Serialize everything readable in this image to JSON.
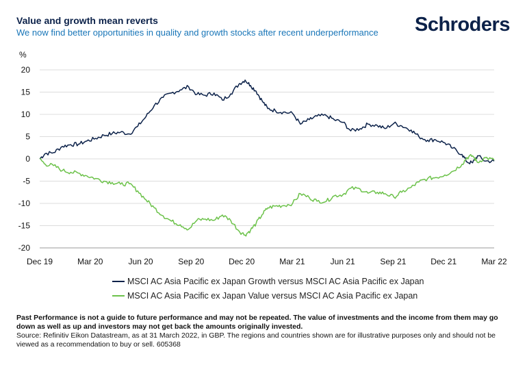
{
  "header": {
    "title": "Value and growth mean reverts",
    "subtitle": "We now find better opportunities in quality and growth stocks after recent underperformance",
    "logo": "Schroders"
  },
  "chart_data": {
    "type": "line",
    "ylabel": "%",
    "ylim": [
      -20,
      20
    ],
    "yticks": [
      20,
      15,
      10,
      5,
      0,
      -5,
      -10,
      -15,
      -20
    ],
    "x_range": [
      "2019-12-31",
      "2022-03-31"
    ],
    "xticks": [
      "Dec 19",
      "Mar 20",
      "Jun 20",
      "Sep 20",
      "Dec 20",
      "Mar 21",
      "Jun 21",
      "Sep 21",
      "Dec 21",
      "Mar 22"
    ],
    "series": [
      {
        "name": "MSCI AC Asia Pacific ex Japan Growth versus MSCI AC Asia Pacific ex Japan",
        "color": "#0b2149",
        "points": [
          [
            "2019-12-31",
            0
          ],
          [
            "2020-01-10",
            1.2
          ],
          [
            "2020-01-25",
            1.4
          ],
          [
            "2020-02-10",
            2.8
          ],
          [
            "2020-02-25",
            3.2
          ],
          [
            "2020-03-10",
            3.3
          ],
          [
            "2020-03-25",
            4.0
          ],
          [
            "2020-04-10",
            4.6
          ],
          [
            "2020-04-25",
            5.3
          ],
          [
            "2020-05-10",
            5.7
          ],
          [
            "2020-05-25",
            6.0
          ],
          [
            "2020-06-10",
            5.6
          ],
          [
            "2020-06-25",
            7.3
          ],
          [
            "2020-07-10",
            9.5
          ],
          [
            "2020-07-25",
            12.0
          ],
          [
            "2020-08-10",
            13.8
          ],
          [
            "2020-08-25",
            14.8
          ],
          [
            "2020-09-10",
            15.5
          ],
          [
            "2020-09-25",
            16.2
          ],
          [
            "2020-10-10",
            14.5
          ],
          [
            "2020-10-25",
            14.3
          ],
          [
            "2020-11-10",
            14.8
          ],
          [
            "2020-11-25",
            13.2
          ],
          [
            "2020-12-10",
            14.6
          ],
          [
            "2020-12-25",
            16.8
          ],
          [
            "2021-01-05",
            17.7
          ],
          [
            "2021-01-15",
            16.5
          ],
          [
            "2021-01-25",
            15.2
          ],
          [
            "2021-02-05",
            13.0
          ],
          [
            "2021-02-15",
            11.3
          ],
          [
            "2021-03-01",
            10.8
          ],
          [
            "2021-03-15",
            10.5
          ],
          [
            "2021-04-01",
            10.2
          ],
          [
            "2021-04-15",
            7.8
          ],
          [
            "2021-05-01",
            8.8
          ],
          [
            "2021-05-15",
            9.6
          ],
          [
            "2021-06-01",
            9.7
          ],
          [
            "2021-06-15",
            8.8
          ],
          [
            "2021-07-01",
            8.2
          ],
          [
            "2021-07-15",
            6.3
          ],
          [
            "2021-08-01",
            6.8
          ],
          [
            "2021-08-15",
            7.8
          ],
          [
            "2021-09-01",
            7.5
          ],
          [
            "2021-09-15",
            6.8
          ],
          [
            "2021-10-01",
            8.0
          ],
          [
            "2021-10-15",
            7.4
          ],
          [
            "2021-11-01",
            6.5
          ],
          [
            "2021-11-15",
            5.0
          ],
          [
            "2021-12-01",
            4.2
          ],
          [
            "2021-12-15",
            4.3
          ],
          [
            "2022-01-01",
            3.6
          ],
          [
            "2022-01-15",
            2.4
          ],
          [
            "2022-02-01",
            1.0
          ],
          [
            "2022-02-10",
            -0.7
          ],
          [
            "2022-02-20",
            -0.9
          ],
          [
            "2022-03-01",
            0.7
          ],
          [
            "2022-03-15",
            -0.5
          ],
          [
            "2022-03-31",
            -0.5
          ]
        ]
      },
      {
        "name": "MSCI AC Asia Pacific ex Japan Value versus MSCI AC Asia Pacific ex Japan",
        "color": "#6cc24a",
        "points": [
          [
            "2019-12-31",
            0
          ],
          [
            "2020-01-10",
            -1.2
          ],
          [
            "2020-01-25",
            -1.5
          ],
          [
            "2020-02-10",
            -2.6
          ],
          [
            "2020-02-25",
            -3.0
          ],
          [
            "2020-03-10",
            -3.2
          ],
          [
            "2020-03-25",
            -3.8
          ],
          [
            "2020-04-10",
            -4.4
          ],
          [
            "2020-04-25",
            -5.0
          ],
          [
            "2020-05-10",
            -5.3
          ],
          [
            "2020-05-25",
            -5.7
          ],
          [
            "2020-06-10",
            -5.6
          ],
          [
            "2020-06-25",
            -7.2
          ],
          [
            "2020-07-10",
            -9.2
          ],
          [
            "2020-07-25",
            -11.0
          ],
          [
            "2020-08-10",
            -12.8
          ],
          [
            "2020-08-25",
            -14.0
          ],
          [
            "2020-09-10",
            -14.8
          ],
          [
            "2020-09-25",
            -15.8
          ],
          [
            "2020-10-10",
            -13.8
          ],
          [
            "2020-10-25",
            -13.5
          ],
          [
            "2020-11-10",
            -13.8
          ],
          [
            "2020-11-25",
            -12.6
          ],
          [
            "2020-12-10",
            -13.8
          ],
          [
            "2020-12-25",
            -16.2
          ],
          [
            "2021-01-05",
            -17.1
          ],
          [
            "2021-01-15",
            -16.0
          ],
          [
            "2021-01-25",
            -14.5
          ],
          [
            "2021-02-05",
            -12.5
          ],
          [
            "2021-02-15",
            -11.0
          ],
          [
            "2021-03-01",
            -10.6
          ],
          [
            "2021-03-15",
            -10.5
          ],
          [
            "2021-04-01",
            -10.0
          ],
          [
            "2021-04-15",
            -7.8
          ],
          [
            "2021-05-01",
            -8.7
          ],
          [
            "2021-05-15",
            -9.5
          ],
          [
            "2021-06-01",
            -9.5
          ],
          [
            "2021-06-15",
            -8.3
          ],
          [
            "2021-07-01",
            -8.0
          ],
          [
            "2021-07-15",
            -6.6
          ],
          [
            "2021-08-01",
            -6.8
          ],
          [
            "2021-08-15",
            -7.7
          ],
          [
            "2021-09-01",
            -7.5
          ],
          [
            "2021-09-15",
            -7.8
          ],
          [
            "2021-10-01",
            -8.6
          ],
          [
            "2021-10-15",
            -7.5
          ],
          [
            "2021-11-01",
            -6.4
          ],
          [
            "2021-11-15",
            -5.2
          ],
          [
            "2021-12-01",
            -4.4
          ],
          [
            "2021-12-15",
            -4.2
          ],
          [
            "2022-01-01",
            -3.6
          ],
          [
            "2022-01-15",
            -2.8
          ],
          [
            "2022-02-01",
            -1.2
          ],
          [
            "2022-02-10",
            0.3
          ],
          [
            "2022-02-20",
            0.7
          ],
          [
            "2022-03-01",
            -0.8
          ],
          [
            "2022-03-15",
            0.3
          ],
          [
            "2022-03-31",
            -0.3
          ]
        ]
      }
    ]
  },
  "notes": {
    "disclaimer": "Past Performance is not a guide to future performance and may not be repeated. The value of investments and the income from them may go down as well as up and investors may not get back the amounts originally invested.",
    "source": "Source: Refinitiv Eikon Datastream, as at 31 March 2022, in GBP. The regions and countries shown are for illustrative purposes only and should not be viewed as a recommendation to buy or sell. 605368"
  }
}
